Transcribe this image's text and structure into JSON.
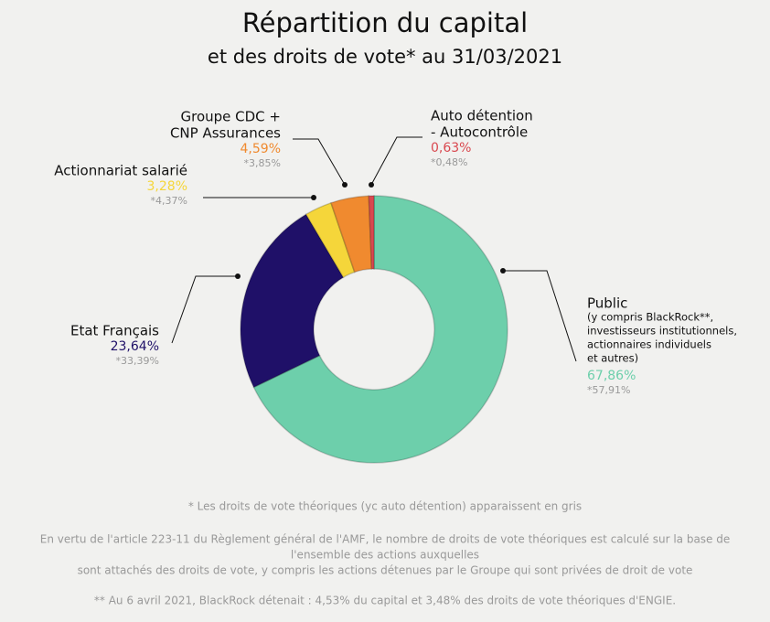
{
  "chart_data": {
    "type": "donut",
    "title": "Répartition du capital",
    "subtitle": "et des droits de vote* au 31/03/2021",
    "categories": [
      [
        "Public"
      ],
      [
        "Etat Français"
      ],
      [
        "Actionnariat salarié"
      ],
      [
        "Groupe CDC +",
        "CNP Assurances"
      ],
      [
        "Auto détention",
        "- Autocontrôle"
      ]
    ],
    "category_notes": [
      [
        "(y compris BlackRock**,",
        "investisseurs institutionnels,",
        "actionnaires individuels",
        "et autres)"
      ],
      null,
      null,
      null,
      null
    ],
    "values": [
      67.86,
      23.64,
      3.28,
      4.59,
      0.63
    ],
    "value_labels": [
      "67,86%",
      "23,64%",
      "3,28%",
      "4,59%",
      "0,63%"
    ],
    "voting_rights": [
      57.91,
      33.39,
      4.37,
      3.85,
      0.48
    ],
    "voting_rights_labels": [
      "*57,91%",
      "*33,39%",
      "*4,37%",
      "*3,85%",
      "*0,48%"
    ],
    "colors": [
      "#6dcfab",
      "#1f1068",
      "#f5d63a",
      "#f08a2f",
      "#d9484f"
    ],
    "notes": [
      [
        "* Les droits de vote théoriques (yc auto détention) apparaissent en gris"
      ],
      [
        "En vertu de l'article 223-11 du Règlement général de l'AMF, le nombre de droits de vote théoriques est calculé sur la base de",
        "l'ensemble des actions auxquelles",
        "sont attachés des droits de vote, y compris les actions détenues par le Groupe qui sont privées de droit de vote"
      ],
      [
        "** Au 6 avril 2021, BlackRock détenait : 4,53% du capital et 3,48% des droits de vote théoriques d'ENGIE."
      ]
    ]
  }
}
